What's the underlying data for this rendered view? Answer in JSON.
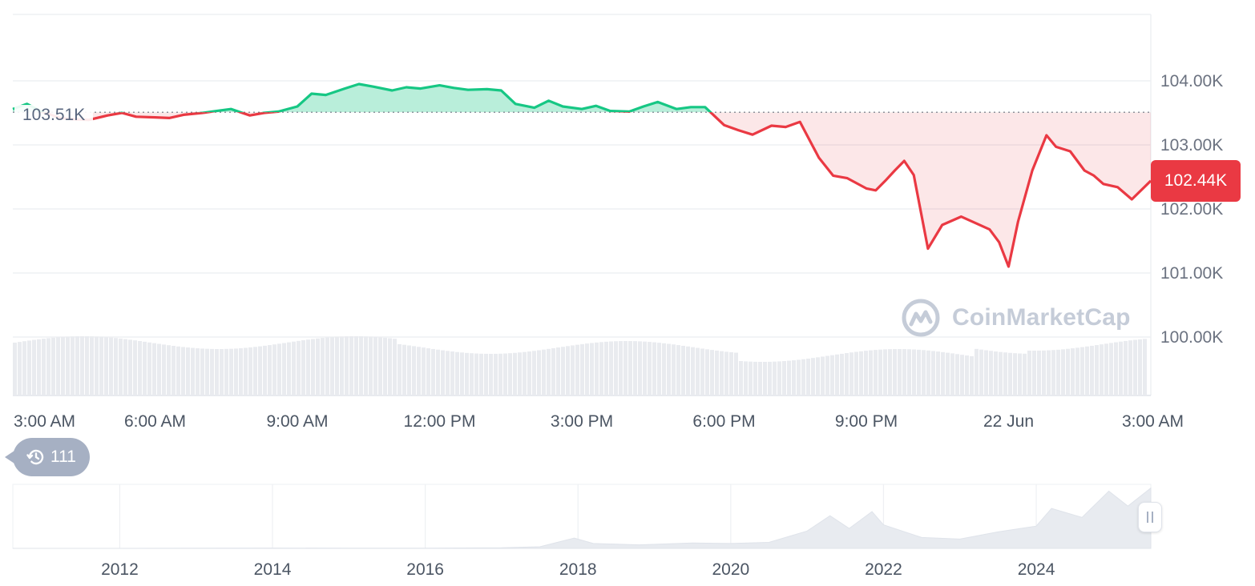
{
  "colors": {
    "up": "#16c784",
    "down": "#ea3943",
    "grid": "#eef0f3",
    "axis_text": "#6b7280",
    "volume": "#e9ebef",
    "navigator_fill": "#e8ebf0"
  },
  "reference_label": "103.51K",
  "current_price_label": "102.44K",
  "history_badge": {
    "icon": "history-icon",
    "count": "111"
  },
  "watermark": {
    "text": "CoinMarketCap",
    "icon": "coinmarketcap-logo-icon"
  },
  "chart_data": [
    {
      "type": "area",
      "y_axis": {
        "labels": [
          "104.00K",
          "103.00K",
          "102.00K",
          "101.00K",
          "100.00K"
        ],
        "ticks": [
          104000,
          103000,
          102000,
          101000,
          100000
        ],
        "range": [
          99000,
          104800
        ]
      },
      "x_axis": {
        "labels": [
          "3:00 AM",
          "6:00 AM",
          "9:00 AM",
          "12:00 PM",
          "3:00 PM",
          "6:00 PM",
          "9:00 PM",
          "22 Jun",
          "3:00 AM"
        ],
        "tick_hours": [
          3,
          6,
          9,
          12,
          15,
          18,
          21,
          24,
          27
        ],
        "range_hours": [
          3,
          27
        ]
      },
      "reference_value": 103510,
      "current_value": 102440,
      "grid": true,
      "series": [
        {
          "hours": [
            3.0,
            3.3,
            3.6,
            4.0,
            4.3,
            4.6,
            5.0,
            5.3,
            5.6,
            6.0,
            6.3,
            6.6,
            7.0,
            7.3,
            7.6,
            8.0,
            8.3,
            8.6,
            9.0,
            9.3,
            9.6,
            10.0,
            10.3,
            10.6,
            11.0,
            11.3,
            11.6,
            12.0,
            12.3,
            12.6,
            13.0,
            13.3,
            13.6,
            14.0,
            14.3,
            14.6,
            15.0,
            15.3,
            15.6,
            16.0,
            16.3,
            16.6,
            17.0,
            17.3,
            17.6,
            18.0,
            18.3,
            18.6,
            19.0,
            19.3,
            19.6,
            20.0,
            20.3,
            20.6,
            21.0,
            21.2,
            21.4,
            21.6,
            21.8,
            22.0,
            22.3,
            22.6,
            23.0,
            23.3,
            23.6,
            23.8,
            24.0,
            24.2,
            24.5,
            24.8,
            25.0,
            25.3,
            25.6,
            25.8,
            26.0,
            26.3,
            26.6,
            27.0
          ],
          "values": [
            103560,
            103640,
            103520,
            103420,
            103400,
            103390,
            103460,
            103500,
            103440,
            103430,
            103420,
            103470,
            103500,
            103530,
            103560,
            103460,
            103500,
            103520,
            103600,
            103800,
            103780,
            103880,
            103950,
            103910,
            103850,
            103900,
            103880,
            103930,
            103890,
            103860,
            103870,
            103850,
            103640,
            103580,
            103690,
            103600,
            103560,
            103610,
            103530,
            103520,
            103600,
            103670,
            103560,
            103590,
            103590,
            103310,
            103230,
            103160,
            103300,
            103280,
            103360,
            102800,
            102520,
            102480,
            102320,
            102290,
            102440,
            102600,
            102750,
            102530,
            101380,
            101750,
            101880,
            101780,
            101680,
            101480,
            101100,
            101800,
            102600,
            103150,
            102970,
            102900,
            102600,
            102520,
            102390,
            102340,
            102150,
            102440
          ]
        }
      ],
      "volume": true
    },
    {
      "type": "area",
      "x_axis": {
        "labels": [
          "2012",
          "2014",
          "2016",
          "2018",
          "2020",
          "2022",
          "2024"
        ],
        "ticks": [
          2012,
          2014,
          2016,
          2018,
          2020,
          2022,
          2024
        ],
        "range": [
          2010.6,
          2025.5
        ]
      },
      "series": [
        {
          "x": [
            2010.6,
            2012.0,
            2013.0,
            2014.0,
            2015.0,
            2016.0,
            2017.0,
            2017.5,
            2017.95,
            2018.2,
            2018.8,
            2019.5,
            2020.0,
            2020.5,
            2021.0,
            2021.3,
            2021.55,
            2021.85,
            2022.0,
            2022.5,
            2023.0,
            2023.5,
            2024.0,
            2024.2,
            2024.6,
            2024.95,
            2025.2,
            2025.5
          ],
          "values": [
            0,
            0,
            500,
            600,
            300,
            400,
            1000,
            3000,
            19000,
            9000,
            6500,
            10000,
            9000,
            11000,
            33000,
            58000,
            38000,
            65000,
            45000,
            20000,
            17000,
            29000,
            43000,
            70000,
            60000,
            100000,
            82000,
            105000
          ]
        }
      ]
    }
  ]
}
